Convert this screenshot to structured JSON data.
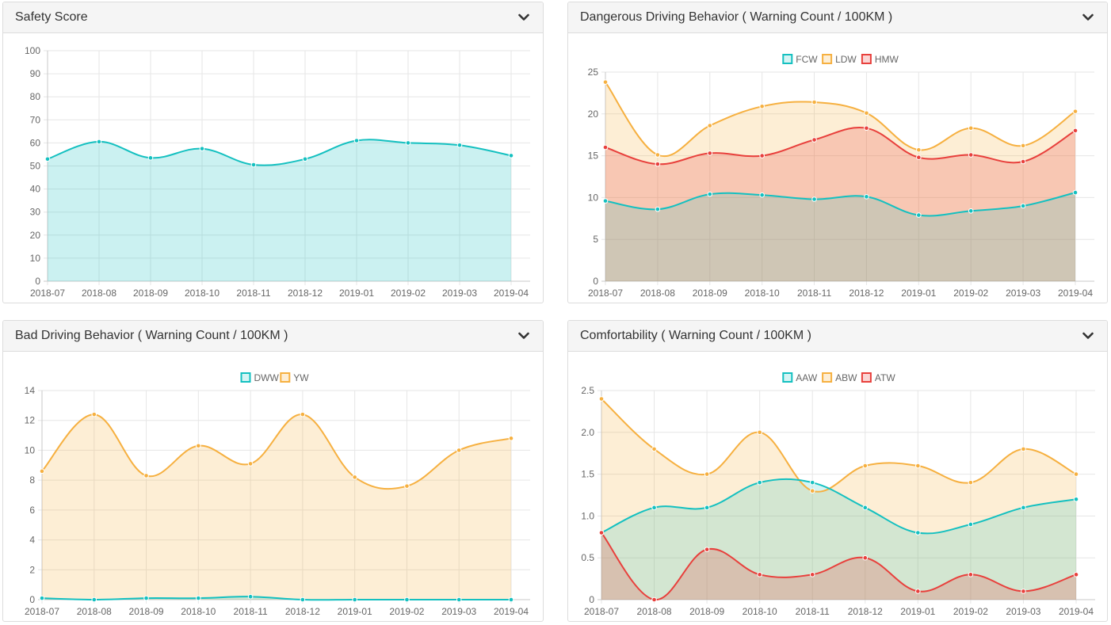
{
  "colors": {
    "teal": "#14c0c0",
    "orange": "#f6b040",
    "red": "#e8403c",
    "grid": "#e6e6e6"
  },
  "panels": [
    {
      "title": "Safety Score",
      "toggle_icon": "chevron-down-icon",
      "chart_data": {
        "type": "area",
        "x": [
          "2018-07",
          "2018-08",
          "2018-09",
          "2018-10",
          "2018-11",
          "2018-12",
          "2019-01",
          "2019-02",
          "2019-03",
          "2019-04"
        ],
        "ylim": [
          0,
          100
        ],
        "yticks": [
          "0",
          "10",
          "20",
          "30",
          "40",
          "50",
          "60",
          "70",
          "80",
          "90",
          "100"
        ],
        "legend": false,
        "grid": true,
        "series": [
          {
            "color": "#14c0c0",
            "fill": "rgba(20,192,192,0.22)",
            "values": [
              53,
              60.5,
              53.5,
              57.5,
              50.5,
              53,
              61,
              60,
              59,
              54.5
            ]
          }
        ]
      }
    },
    {
      "title": "Dangerous Driving Behavior ( Warning Count / 100KM )",
      "toggle_icon": "chevron-down-icon",
      "chart_data": {
        "type": "area",
        "x": [
          "2018-07",
          "2018-08",
          "2018-09",
          "2018-10",
          "2018-11",
          "2018-12",
          "2019-01",
          "2019-02",
          "2019-03",
          "2019-04"
        ],
        "ylim": [
          0,
          25
        ],
        "yticks": [
          "0",
          "5",
          "10",
          "15",
          "20",
          "25"
        ],
        "legend": true,
        "legend_position": "top-center",
        "grid": true,
        "series": [
          {
            "name": "FCW",
            "color": "#14c0c0",
            "fill": "rgba(20,192,192,0.18)",
            "values": [
              9.6,
              8.6,
              10.4,
              10.3,
              9.8,
              10.1,
              7.9,
              8.4,
              9,
              10.6
            ]
          },
          {
            "name": "LDW",
            "color": "#f6b040",
            "fill": "rgba(246,176,64,0.22)",
            "values": [
              23.8,
              15.1,
              18.6,
              20.9,
              21.4,
              20.1,
              15.7,
              18.3,
              16.2,
              20.3
            ]
          },
          {
            "name": "HMW",
            "color": "#e8403c",
            "fill": "rgba(232,64,60,0.22)",
            "values": [
              16,
              14,
              15.3,
              15,
              16.9,
              18.3,
              14.8,
              15.1,
              14.3,
              18
            ]
          }
        ]
      }
    },
    {
      "title": "Bad Driving Behavior ( Warning Count / 100KM )",
      "toggle_icon": "chevron-down-icon",
      "chart_data": {
        "type": "area",
        "x": [
          "2018-07",
          "2018-08",
          "2018-09",
          "2018-10",
          "2018-11",
          "2018-12",
          "2019-01",
          "2019-02",
          "2019-03",
          "2019-04"
        ],
        "ylim": [
          0,
          14
        ],
        "yticks": [
          "0",
          "2",
          "4",
          "6",
          "8",
          "10",
          "12",
          "14"
        ],
        "legend": true,
        "legend_position": "top-center",
        "grid": true,
        "series": [
          {
            "name": "DWW",
            "color": "#14c0c0",
            "fill": "rgba(20,192,192,0.18)",
            "values": [
              0.1,
              0,
              0.1,
              0.1,
              0.2,
              0,
              0,
              0,
              0,
              0
            ]
          },
          {
            "name": "YW",
            "color": "#f6b040",
            "fill": "rgba(246,176,64,0.22)",
            "values": [
              8.6,
              12.4,
              8.3,
              10.3,
              9.1,
              12.4,
              8.2,
              7.6,
              10,
              10.8
            ]
          }
        ]
      }
    },
    {
      "title": "Comfortability ( Warning Count / 100KM )",
      "toggle_icon": "chevron-down-icon",
      "chart_data": {
        "type": "area",
        "x": [
          "2018-07",
          "2018-08",
          "2018-09",
          "2018-10",
          "2018-11",
          "2018-12",
          "2019-01",
          "2019-02",
          "2019-03",
          "2019-04"
        ],
        "ylim": [
          0,
          2.5
        ],
        "yticks": [
          "0",
          "0.5",
          "1.0",
          "1.5",
          "2.0",
          "2.5"
        ],
        "legend": true,
        "legend_position": "top-center",
        "grid": true,
        "series": [
          {
            "name": "AAW",
            "color": "#14c0c0",
            "fill": "rgba(20,192,192,0.18)",
            "values": [
              0.8,
              1.1,
              1.1,
              1.4,
              1.4,
              1.1,
              0.8,
              0.9,
              1.1,
              1.2
            ]
          },
          {
            "name": "ABW",
            "color": "#f6b040",
            "fill": "rgba(246,176,64,0.22)",
            "values": [
              2.4,
              1.8,
              1.5,
              2.0,
              1.3,
              1.6,
              1.6,
              1.4,
              1.8,
              1.5
            ]
          },
          {
            "name": "ATW",
            "color": "#e8403c",
            "fill": "rgba(232,64,60,0.22)",
            "values": [
              0.8,
              0,
              0.6,
              0.3,
              0.3,
              0.5,
              0.1,
              0.3,
              0.1,
              0.3
            ]
          }
        ]
      }
    }
  ]
}
